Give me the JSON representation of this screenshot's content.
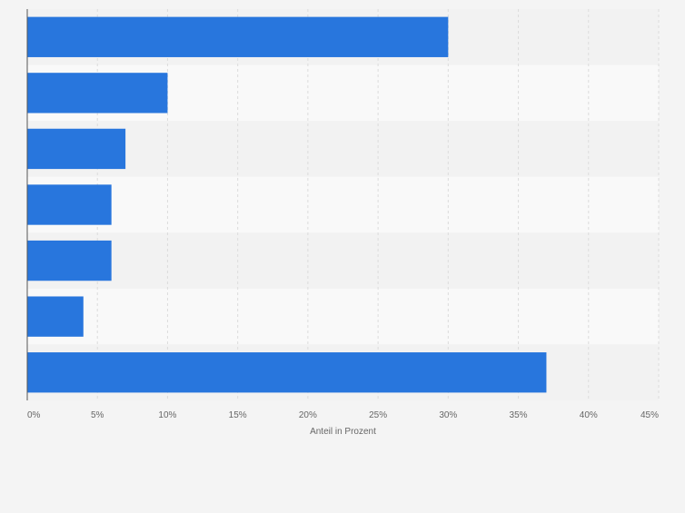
{
  "chart_data": {
    "type": "bar",
    "orientation": "horizontal",
    "categories": [
      "",
      "",
      "",
      "",
      "",
      "",
      ""
    ],
    "values": [
      30,
      10,
      7,
      6,
      6,
      4,
      37
    ],
    "xlabel": "Anteil in Prozent",
    "ylabel": "",
    "xlim": [
      0,
      45
    ],
    "x_ticks": [
      0,
      5,
      10,
      15,
      20,
      25,
      30,
      35,
      40,
      45
    ],
    "x_tick_labels": [
      "0%",
      "5%",
      "10%",
      "15%",
      "20%",
      "25%",
      "30%",
      "35%",
      "40%",
      "45%"
    ],
    "grid": true,
    "bar_color": "#2876dd",
    "band_colors": [
      "#f2f2f2",
      "#f9f9f9"
    ],
    "gridline_color": "#dcdcdc",
    "axis_color": "#555555",
    "tick_label_color": "#666666"
  }
}
